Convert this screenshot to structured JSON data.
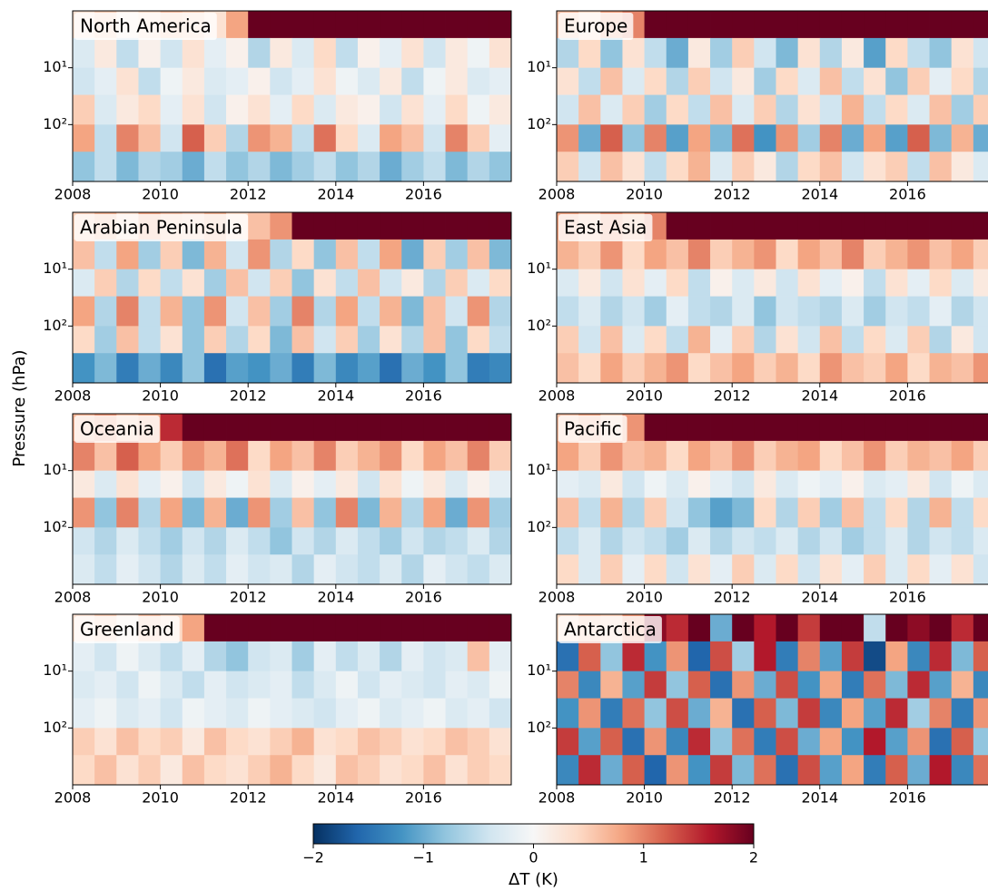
{
  "chart_data": {
    "type": "heatmap",
    "ylabel": "Pressure (hPa)",
    "xlim": [
      2008,
      2018
    ],
    "xticks": [
      2008,
      2010,
      2012,
      2014,
      2016
    ],
    "ylim": [
      1000,
      1
    ],
    "log_y": true,
    "yticks": [
      {
        "value": 10,
        "label": "10¹"
      },
      {
        "value": 100,
        "label": "10²"
      }
    ],
    "x_edges": [
      2008,
      2008.5,
      2009,
      2009.5,
      2010,
      2010.5,
      2011,
      2011.5,
      2012,
      2012.5,
      2013,
      2013.5,
      2014,
      2014.5,
      2015,
      2015.5,
      2016,
      2016.5,
      2017,
      2017.5,
      2018
    ],
    "y_edges": [
      1,
      3,
      10,
      30,
      100,
      300,
      1000
    ],
    "colorscale": [
      "#053061",
      "#2166ac",
      "#4393c3",
      "#92c5de",
      "#d1e5f0",
      "#f7f7f7",
      "#fddbc7",
      "#f4a582",
      "#d6604d",
      "#b2182b",
      "#67001f"
    ],
    "clim": [
      -2,
      2
    ],
    "colorbar": {
      "label": "ΔT (K)",
      "ticks": [
        {
          "value": -2,
          "label": "−2"
        },
        {
          "value": -1,
          "label": "−1"
        },
        0,
        1,
        2
      ]
    },
    "panels": [
      {
        "title": "North America",
        "values": [
          [
            0.3,
            0.5,
            0.2,
            0.4,
            0.6,
            0.5,
            0.3,
            0.8,
            2,
            2,
            2,
            2,
            2,
            2,
            2,
            2,
            2,
            2,
            2,
            2
          ],
          [
            -0.3,
            0.2,
            -0.5,
            0.1,
            -0.4,
            0.3,
            -0.2,
            0.1,
            -0.6,
            0.2,
            -0.3,
            0.4,
            -0.5,
            0.1,
            -0.2,
            0.3,
            -0.4,
            0.2,
            -0.1,
            0.3
          ],
          [
            -0.4,
            -0.2,
            0.3,
            -0.5,
            -0.1,
            0.2,
            -0.3,
            -0.2,
            0.1,
            -0.4,
            -0.2,
            0.3,
            -0.1,
            -0.3,
            0.2,
            -0.5,
            -0.1,
            0.2,
            -0.3,
            -0.2
          ],
          [
            0.5,
            -0.3,
            0.2,
            0.4,
            -0.2,
            0.3,
            -0.4,
            0.1,
            0.3,
            -0.2,
            0.4,
            -0.3,
            0.2,
            0.1,
            -0.4,
            0.3,
            -0.2,
            0.4,
            -0.1,
            0.2
          ],
          [
            0.8,
            -0.5,
            1,
            0.6,
            -0.4,
            1.2,
            0.5,
            -0.6,
            0.9,
            0.7,
            -0.5,
            1.1,
            0.4,
            -0.3,
            0.8,
            0.6,
            -0.4,
            1,
            0.5,
            -0.2
          ],
          [
            -0.8,
            -0.5,
            -0.9,
            -0.6,
            -0.7,
            -1,
            -0.5,
            -0.8,
            -0.6,
            -0.9,
            -0.7,
            -0.5,
            -0.8,
            -0.6,
            -1,
            -0.7,
            -0.5,
            -0.9,
            -0.6,
            -0.8
          ]
        ]
      },
      {
        "title": "Europe",
        "values": [
          [
            0.6,
            0.4,
            0.8,
            1,
            2,
            2,
            2,
            2,
            2,
            2,
            2,
            2,
            2,
            2,
            2,
            2,
            2,
            2,
            2,
            2
          ],
          [
            -0.6,
            0.4,
            -0.8,
            0.3,
            -0.5,
            -1,
            0.2,
            -0.7,
            0.5,
            -0.4,
            -0.9,
            0.3,
            -0.6,
            0.2,
            -1.1,
            0.4,
            -0.5,
            -0.8,
            0.3,
            -0.4
          ],
          [
            0.3,
            -0.5,
            0.6,
            -0.3,
            0.4,
            -0.6,
            0.5,
            -0.4,
            0.2,
            -0.7,
            0.4,
            -0.3,
            0.6,
            -0.5,
            0.3,
            -0.8,
            0.5,
            -0.2,
            0.4,
            -0.6
          ],
          [
            -0.4,
            0.6,
            -0.3,
            0.5,
            -0.7,
            0.4,
            -0.5,
            0.6,
            -0.3,
            0.5,
            -0.6,
            0.3,
            -0.4,
            0.7,
            -0.5,
            0.4,
            -0.3,
            0.6,
            -0.7,
            0.5
          ],
          [
            0.9,
            -1,
            1.2,
            -0.8,
            1,
            -1.1,
            0.8,
            -0.9,
            1.1,
            -1.2,
            0.9,
            -0.7,
            1,
            -1,
            0.8,
            -1.1,
            1.2,
            -0.9,
            0.7,
            -1
          ],
          [
            0.5,
            -0.4,
            0.6,
            0.3,
            -0.5,
            0.4,
            0.7,
            -0.3,
            0.5,
            0.2,
            -0.6,
            0.4,
            0.6,
            -0.4,
            0.3,
            0.5,
            -0.5,
            0.6,
            0.2,
            -0.3
          ]
        ]
      },
      {
        "title": "Arabian Peninsula",
        "values": [
          [
            0.5,
            0.7,
            0.4,
            0.8,
            0.6,
            0.5,
            0.7,
            0.4,
            0.6,
            0.9,
            2,
            2,
            2,
            2,
            2,
            2,
            2,
            2,
            2,
            2
          ],
          [
            0.6,
            -0.5,
            0.8,
            -0.7,
            0.5,
            -0.9,
            0.7,
            -0.4,
            0.9,
            -0.6,
            0.4,
            -0.8,
            0.6,
            -0.5,
            0.8,
            -1,
            0.5,
            -0.7,
            0.6,
            -0.9
          ],
          [
            -0.3,
            0.5,
            -0.6,
            0.4,
            -0.5,
            0.3,
            -0.7,
            0.6,
            -0.4,
            0.5,
            -0.8,
            0.3,
            -0.5,
            0.6,
            -0.4,
            0.2,
            -0.6,
            0.5,
            -0.3,
            0.4
          ],
          [
            0.8,
            -0.6,
            1,
            -0.5,
            0.7,
            -0.8,
            0.9,
            -0.4,
            0.6,
            -0.7,
            1,
            -0.6,
            0.8,
            -0.5,
            0.7,
            -0.9,
            0.6,
            -0.4,
            0.9,
            -0.6
          ],
          [
            0.4,
            -0.7,
            0.6,
            -0.5,
            0.3,
            -0.8,
            0.5,
            -0.6,
            0.4,
            -0.9,
            0.6,
            -0.4,
            0.5,
            -0.7,
            0.3,
            -0.6,
            0.6,
            -0.8,
            0.4,
            -0.5
          ],
          [
            -1.2,
            -0.9,
            -1.4,
            -1,
            -1.3,
            -0.8,
            -1.5,
            -1.1,
            -1.2,
            -1,
            -1.4,
            -0.9,
            -1.3,
            -1.1,
            -1.5,
            -1,
            -1.2,
            -0.8,
            -1.4,
            -1.3
          ]
        ]
      },
      {
        "title": "East Asia",
        "values": [
          [
            0.8,
            0.6,
            0.9,
            0.7,
            1,
            2,
            2,
            2,
            2,
            2,
            2,
            2,
            2,
            2,
            2,
            2,
            2,
            2,
            2,
            2
          ],
          [
            0.7,
            0.5,
            0.9,
            0.4,
            0.8,
            0.6,
            1,
            0.5,
            0.7,
            0.9,
            0.4,
            0.8,
            0.6,
            1,
            0.5,
            0.7,
            0.9,
            0.6,
            0.8,
            0.5
          ],
          [
            -0.3,
            0.2,
            -0.4,
            0.3,
            -0.2,
            0.4,
            -0.5,
            0.1,
            -0.3,
            0.2,
            -0.4,
            0.3,
            -0.2,
            0.1,
            -0.5,
            0.3,
            -0.2,
            0.4,
            -0.3,
            0.2
          ],
          [
            -0.5,
            -0.3,
            -0.6,
            -0.4,
            -0.7,
            -0.2,
            -0.5,
            -0.6,
            -0.3,
            -0.8,
            -0.4,
            -0.5,
            -0.6,
            -0.3,
            -0.7,
            -0.4,
            -0.5,
            -0.2,
            -0.6,
            -0.4
          ],
          [
            0.5,
            -0.4,
            0.6,
            -0.3,
            0.4,
            -0.5,
            0.7,
            -0.2,
            0.5,
            -0.6,
            0.3,
            -0.4,
            0.6,
            -0.5,
            0.4,
            -0.3,
            0.5,
            -0.6,
            0.2,
            -0.4
          ],
          [
            0.6,
            0.4,
            0.8,
            0.5,
            0.7,
            0.9,
            0.4,
            0.6,
            0.8,
            0.5,
            0.7,
            0.4,
            0.9,
            0.6,
            0.5,
            0.8,
            0.4,
            0.7,
            0.6,
            0.9
          ]
        ]
      },
      {
        "title": "Oceania",
        "values": [
          [
            0.7,
            0.9,
            0.6,
            0.8,
            1.5,
            2,
            2,
            2,
            2,
            2,
            2,
            2,
            2,
            2,
            2,
            2,
            2,
            2,
            2,
            2
          ],
          [
            1,
            0.6,
            1.2,
            0.8,
            0.5,
            0.9,
            0.7,
            1.1,
            0.4,
            0.8,
            0.6,
            1,
            0.5,
            0.7,
            0.9,
            0.4,
            0.8,
            0.6,
            1,
            0.5
          ],
          [
            0.2,
            -0.3,
            0.3,
            -0.2,
            0.1,
            -0.4,
            0.2,
            -0.1,
            0.3,
            -0.3,
            0.1,
            -0.2,
            0.2,
            -0.4,
            0.3,
            -0.1,
            0.2,
            -0.3,
            0.1,
            -0.2
          ],
          [
            0.9,
            -0.8,
            1,
            -0.6,
            0.8,
            -0.9,
            0.7,
            -1,
            0.9,
            -0.7,
            0.6,
            -0.8,
            1,
            -0.9,
            0.7,
            -0.6,
            0.8,
            -1,
            0.9,
            -0.7
          ],
          [
            -0.4,
            -0.6,
            -0.3,
            -0.5,
            -0.7,
            -0.4,
            -0.6,
            -0.3,
            -0.5,
            -0.8,
            -0.4,
            -0.6,
            -0.3,
            -0.5,
            -0.7,
            -0.4,
            -0.6,
            -0.5,
            -0.3,
            -0.6
          ],
          [
            -0.3,
            -0.5,
            -0.2,
            -0.4,
            -0.6,
            -0.3,
            -0.5,
            -0.2,
            -0.4,
            -0.3,
            -0.6,
            -0.2,
            -0.4,
            -0.5,
            -0.3,
            -0.6,
            -0.2,
            -0.4,
            -0.5,
            -0.3
          ]
        ]
      },
      {
        "title": "Pacific",
        "values": [
          [
            0.6,
            0.8,
            0.5,
            0.9,
            2,
            2,
            2,
            2,
            2,
            2,
            2,
            2,
            2,
            2,
            2,
            2,
            2,
            2,
            2,
            2
          ],
          [
            0.8,
            0.5,
            0.9,
            0.6,
            0.7,
            0.4,
            0.8,
            0.6,
            0.9,
            0.5,
            0.7,
            0.8,
            0.4,
            0.6,
            0.9,
            0.5,
            0.7,
            0.6,
            0.8,
            0.5
          ],
          [
            -0.2,
            -0.3,
            0.2,
            -0.4,
            -0.1,
            -0.3,
            0.1,
            -0.2,
            -0.4,
            0.2,
            -0.3,
            -0.1,
            -0.2,
            0.1,
            -0.3,
            -0.2,
            0.2,
            -0.4,
            -0.1,
            -0.3
          ],
          [
            0.6,
            -0.5,
            0.7,
            -0.6,
            0.5,
            -0.4,
            -0.8,
            -1.1,
            -0.9,
            0.4,
            -0.6,
            0.5,
            -0.7,
            0.6,
            -0.5,
            0.4,
            -0.6,
            0.7,
            -0.5,
            0.4
          ],
          [
            -0.5,
            -0.3,
            -0.6,
            -0.4,
            -0.5,
            -0.7,
            -0.3,
            -0.6,
            -0.4,
            -0.5,
            -0.3,
            -0.6,
            -0.4,
            -0.7,
            -0.5,
            -0.3,
            -0.6,
            -0.4,
            -0.5,
            -0.3
          ],
          [
            0.4,
            -0.3,
            0.5,
            -0.2,
            0.4,
            -0.4,
            0.3,
            -0.2,
            0.5,
            -0.3,
            0.4,
            -0.4,
            0.3,
            -0.2,
            0.5,
            -0.3,
            0.4,
            -0.2,
            0.3,
            -0.4
          ]
        ]
      },
      {
        "title": "Greenland",
        "values": [
          [
            0.3,
            0.5,
            0.2,
            0.6,
            0.4,
            0.8,
            2,
            2,
            2,
            2,
            2,
            2,
            2,
            2,
            2,
            2,
            2,
            2,
            2,
            2
          ],
          [
            -0.2,
            -0.4,
            -0.1,
            -0.3,
            -0.5,
            -0.2,
            -0.6,
            -0.8,
            -0.4,
            -0.3,
            -0.7,
            -0.2,
            -0.5,
            -0.3,
            -0.6,
            -0.2,
            -0.4,
            -0.3,
            0.6,
            -0.2
          ],
          [
            -0.3,
            -0.2,
            -0.4,
            -0.1,
            -0.3,
            -0.5,
            -0.2,
            -0.4,
            -0.3,
            -0.2,
            -0.5,
            -0.3,
            -0.1,
            -0.4,
            -0.2,
            -0.3,
            -0.4,
            -0.2,
            -0.3,
            -0.1
          ],
          [
            -0.2,
            -0.1,
            -0.3,
            -0.2,
            -0.4,
            -0.1,
            -0.2,
            -0.3,
            -0.1,
            -0.2,
            -0.3,
            -0.4,
            -0.2,
            -0.1,
            -0.3,
            -0.2,
            -0.1,
            -0.3,
            -0.2,
            -0.4
          ],
          [
            0.5,
            0.3,
            0.6,
            0.4,
            0.5,
            0.2,
            0.6,
            0.4,
            0.3,
            0.5,
            0.7,
            0.3,
            0.4,
            0.6,
            0.5,
            0.3,
            0.4,
            0.6,
            0.5,
            0.3
          ],
          [
            0.4,
            0.6,
            0.3,
            0.5,
            0.2,
            0.6,
            0.4,
            0.3,
            0.5,
            0.7,
            0.4,
            0.2,
            0.6,
            0.5,
            0.3,
            0.4,
            0.6,
            0.3,
            0.5,
            0.4
          ]
        ]
      },
      {
        "title": "Antarctica",
        "values": [
          [
            0.4,
            0.6,
            0.5,
            0.9,
            1.8,
            1.5,
            2,
            -1,
            2,
            1.6,
            2,
            1.4,
            2,
            2,
            -0.5,
            2,
            1.8,
            2,
            1.5,
            2
          ],
          [
            -1.5,
            1.2,
            -0.8,
            1.5,
            -1.2,
            0.9,
            -1.6,
            1.3,
            -0.7,
            1.6,
            -1.4,
            1,
            -1.1,
            1.4,
            -1.8,
            0.8,
            -1.3,
            1.5,
            -0.9,
            1.2
          ],
          [
            1,
            -1.3,
            0.7,
            -1.1,
            1.4,
            -0.8,
            1.2,
            -1.5,
            0.9,
            -1,
            1.3,
            -1.2,
            0.8,
            -1.4,
            1.1,
            -0.9,
            1.5,
            -1.1,
            0.7,
            -1.3
          ],
          [
            -1.2,
            0.9,
            -1.4,
            1.1,
            -0.8,
            1.3,
            -1,
            0.7,
            -1.5,
            1.2,
            -0.9,
            1.4,
            -1.3,
            0.8,
            -1.1,
            1.5,
            -0.7,
            1,
            -1.4,
            0.9
          ],
          [
            1.4,
            -1.1,
            1.2,
            -1.5,
            0.9,
            -1.3,
            1.5,
            -0.8,
            1.1,
            -1.4,
            1.3,
            -1,
            0.8,
            -1.2,
            1.6,
            -1.1,
            0.9,
            -1.5,
            1.2,
            -0.8
          ],
          [
            -1.3,
            1.5,
            -1,
            1.2,
            -1.6,
            0.9,
            -1.2,
            1.4,
            -0.9,
            1.1,
            -1.5,
            1.3,
            -1.1,
            0.8,
            -1.4,
            1.2,
            -1,
            1.6,
            -1.3,
            1.1
          ]
        ]
      }
    ]
  }
}
